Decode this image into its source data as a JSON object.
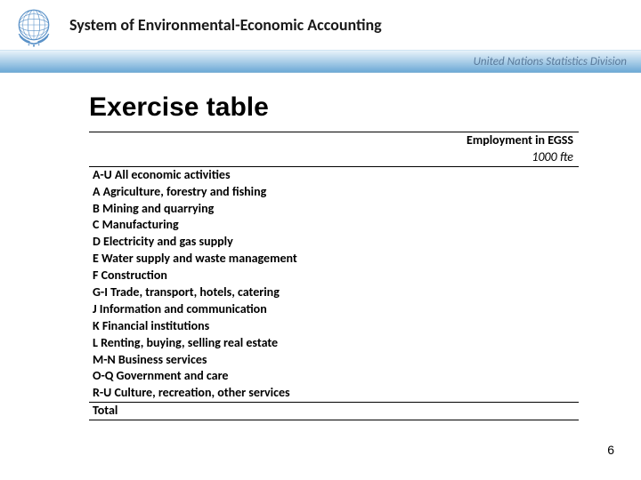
{
  "header": {
    "title": "System of Environmental-Economic Accounting",
    "bar_text": "United Nations Statistics Division"
  },
  "slide": {
    "title": "Exercise table",
    "page_number": "6"
  },
  "table": {
    "column_header": "Employment in EGSS",
    "unit": "1000 fte",
    "rows": [
      "A-U All economic activities",
      "A Agriculture, forestry and fishing",
      "B Mining and quarrying",
      "C Manufacturing",
      "D Electricity and gas supply",
      "E Water supply and waste management",
      "F Construction",
      "G-I Trade, transport, hotels, catering",
      "J Information and communication",
      "K Financial institutions",
      "L Renting, buying, selling real estate",
      "M-N Business services",
      "O-Q Government and care",
      "R-U Culture, recreation, other services"
    ],
    "total_label": "Total"
  },
  "colors": {
    "text": "#000000",
    "bar_text": "#5a7a9a",
    "gradient_top": "#e8f2fa",
    "gradient_mid": "#b8d6ec",
    "gradient_bottom": "#6da9d6",
    "logo_blue": "#5b92c8"
  }
}
